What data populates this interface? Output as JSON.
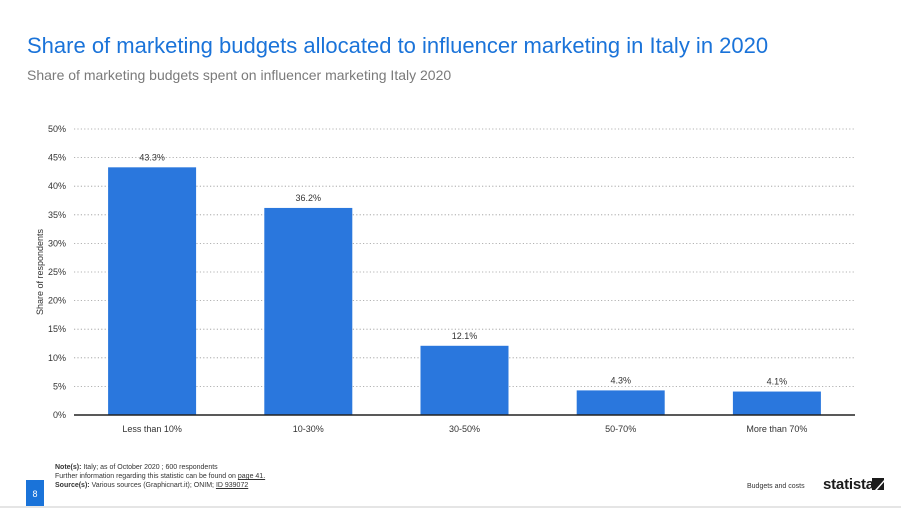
{
  "header": {
    "title": "Share of marketing budgets allocated to influencer marketing in Italy in 2020",
    "subtitle": "Share of marketing budgets spent on influencer marketing Italy 2020"
  },
  "chart_data": {
    "type": "bar",
    "categories": [
      "Less than 10%",
      "10-30%",
      "30-50%",
      "50-70%",
      "More than 70%"
    ],
    "values": [
      43.3,
      36.2,
      12.1,
      4.3,
      4.1
    ],
    "value_labels": [
      "43.3%",
      "36.2%",
      "12.1%",
      "4.3%",
      "4.1%"
    ],
    "ylabel": "Share of respondents",
    "xlabel": "",
    "ylim": [
      0,
      50
    ],
    "yticks": [
      0,
      5,
      10,
      15,
      20,
      25,
      30,
      35,
      40,
      45,
      50
    ],
    "ytick_labels": [
      "0%",
      "5%",
      "10%",
      "15%",
      "20%",
      "25%",
      "30%",
      "35%",
      "40%",
      "45%",
      "50%"
    ],
    "grid": true,
    "bar_color": "#2a77dd"
  },
  "footer": {
    "notes_label": "Note(s):",
    "notes_text": "Italy; as of October 2020 ; 600 respondents",
    "further_info": "Further information regarding this statistic can be found on",
    "further_link": "page 41.",
    "source_label": "Source(s):",
    "source_text": "Various sources (Graphicnart.it); ONIM;",
    "source_id": "ID 939072",
    "page_number": "8",
    "section": "Budgets and costs",
    "brand": "statista"
  },
  "colors": {
    "accent": "#1a73d9",
    "bar": "#2a77dd"
  }
}
